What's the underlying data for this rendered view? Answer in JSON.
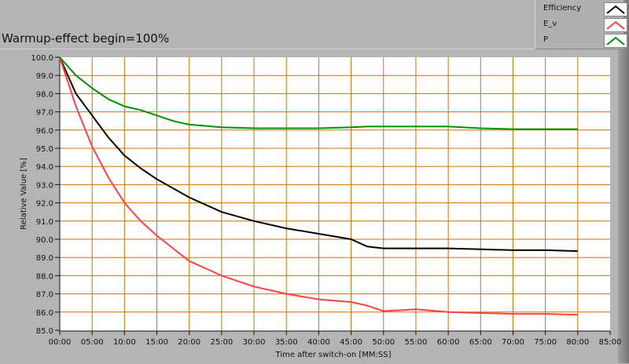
{
  "title": "Warmup-effect begin=100%",
  "legend": [
    {
      "label": "Efficiency",
      "color": "#000000"
    },
    {
      "label": "E_v",
      "color": "#ff4040"
    },
    {
      "label": "P",
      "color": "#009000"
    }
  ],
  "chart_data": {
    "type": "line",
    "title": "Warmup-effect begin=100%",
    "xlabel": "Time after switch-on [MM:SS]",
    "ylabel": "Relative Value [%]",
    "xlim": [
      0,
      85
    ],
    "ylim": [
      85,
      100
    ],
    "grid": true,
    "grid_color": "#d07000",
    "legend_position": "top-right",
    "x_ticks": [
      "00:00",
      "05:00",
      "10:00",
      "15:00",
      "20:00",
      "25:00",
      "30:00",
      "35:00",
      "40:00",
      "45:00",
      "50:00",
      "55:00",
      "60:00",
      "65:00",
      "70:00",
      "75:00",
      "80:00",
      "85:00"
    ],
    "y_ticks": [
      "85.0",
      "86.0",
      "87.0",
      "88.0",
      "89.0",
      "90.0",
      "91.0",
      "92.0",
      "93.0",
      "94.0",
      "95.0",
      "96.0",
      "97.0",
      "98.0",
      "99.0",
      "100.0"
    ],
    "x": [
      0,
      2.5,
      5,
      7.5,
      10,
      12.5,
      15,
      17.5,
      20,
      25,
      30,
      35,
      40,
      45,
      47.5,
      50,
      55,
      60,
      65,
      70,
      75,
      80
    ],
    "series": [
      {
        "name": "Efficiency",
        "color": "#000000",
        "values": [
          100,
          98.0,
          96.8,
          95.6,
          94.6,
          93.9,
          93.3,
          92.8,
          92.3,
          91.5,
          91.0,
          90.6,
          90.3,
          90.0,
          89.6,
          89.5,
          89.5,
          89.5,
          89.45,
          89.4,
          89.4,
          89.35
        ]
      },
      {
        "name": "E_v",
        "color": "#ff4040",
        "values": [
          100,
          97.3,
          95.1,
          93.4,
          92.0,
          91.0,
          90.2,
          89.5,
          88.8,
          88.0,
          87.4,
          87.0,
          86.7,
          86.55,
          86.35,
          86.05,
          86.15,
          86.0,
          85.95,
          85.9,
          85.9,
          85.85
        ]
      },
      {
        "name": "P",
        "color": "#009000",
        "values": [
          100,
          99.0,
          98.3,
          97.7,
          97.3,
          97.1,
          96.8,
          96.5,
          96.3,
          96.15,
          96.1,
          96.1,
          96.1,
          96.15,
          96.2,
          96.2,
          96.2,
          96.2,
          96.1,
          96.05,
          96.05,
          96.05
        ]
      }
    ]
  }
}
